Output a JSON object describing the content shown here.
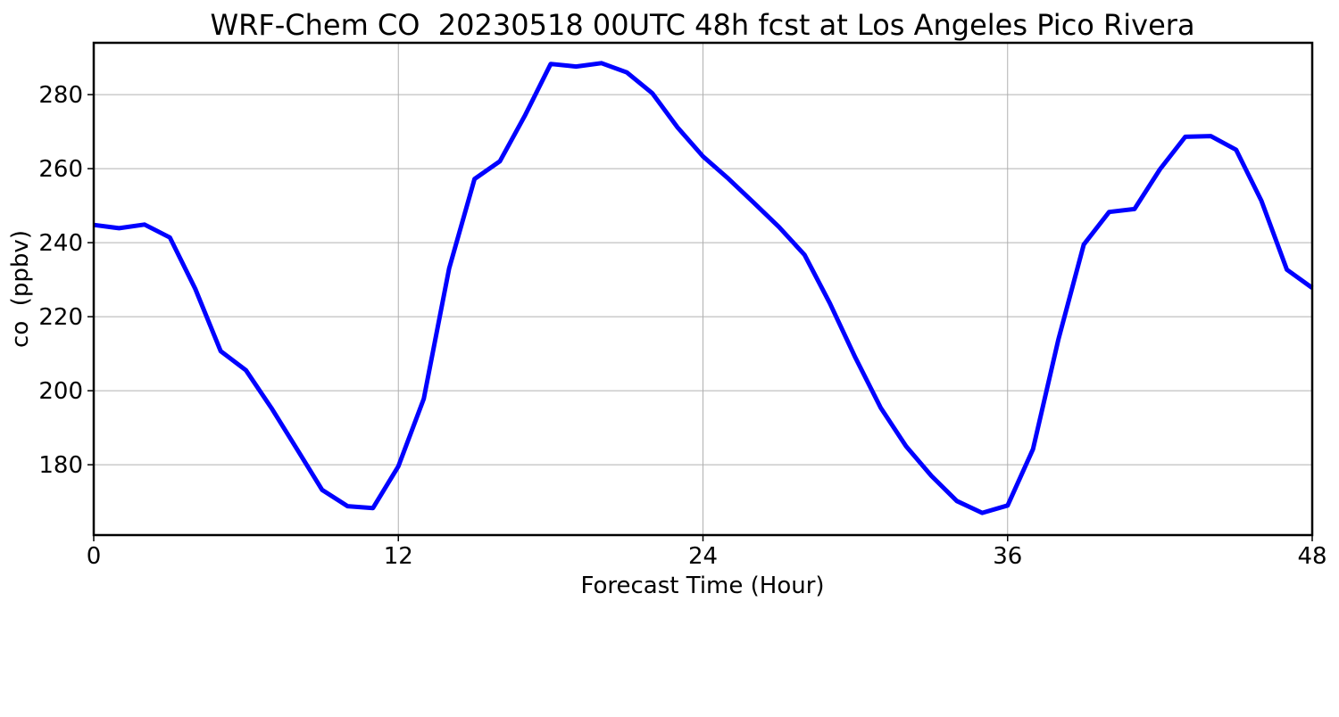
{
  "chart_data": {
    "type": "line",
    "title": "WRF-Chem CO  20230518 00UTC 48h fcst at Los Angeles Pico Rivera",
    "xlabel": "Forecast Time (Hour)",
    "ylabel": "co  (ppbv)",
    "xlim": [
      0,
      48
    ],
    "ylim": [
      161,
      294
    ],
    "xticks": [
      0,
      12,
      24,
      36,
      48
    ],
    "yticks": [
      180,
      200,
      220,
      240,
      260,
      280
    ],
    "grid": true,
    "series": [
      {
        "color": "#0000ff",
        "x": [
          0,
          1,
          2,
          3,
          4,
          5,
          6,
          7,
          8,
          9,
          10,
          11,
          12,
          13,
          14,
          15,
          16,
          17,
          18,
          19,
          20,
          21,
          22,
          23,
          24,
          25,
          26,
          27,
          28,
          29,
          30,
          31,
          32,
          33,
          34,
          35,
          36,
          37,
          38,
          39,
          40,
          41,
          42,
          43,
          44,
          45,
          46,
          47,
          48
        ],
        "y": [
          244.8,
          243.9,
          244.9,
          241.4,
          227.5,
          210.7,
          205.5,
          195.3,
          184.3,
          173.2,
          168.8,
          168.3,
          179.6,
          197.8,
          233.0,
          257.2,
          262.0,
          274.5,
          288.3,
          287.6,
          288.5,
          286.0,
          280.4,
          271.1,
          263.3,
          257.3,
          250.8,
          244.2,
          236.7,
          223.6,
          209.0,
          195.4,
          185.0,
          177.0,
          170.2,
          167.0,
          169.0,
          184.2,
          213.8,
          239.5,
          248.3,
          249.1,
          259.8,
          268.6,
          268.8,
          265.1,
          251.3,
          232.7,
          227.8
        ]
      }
    ]
  },
  "colors": {
    "line": "#0000ff",
    "grid": "#b0b0b0",
    "axes": "#000000"
  }
}
